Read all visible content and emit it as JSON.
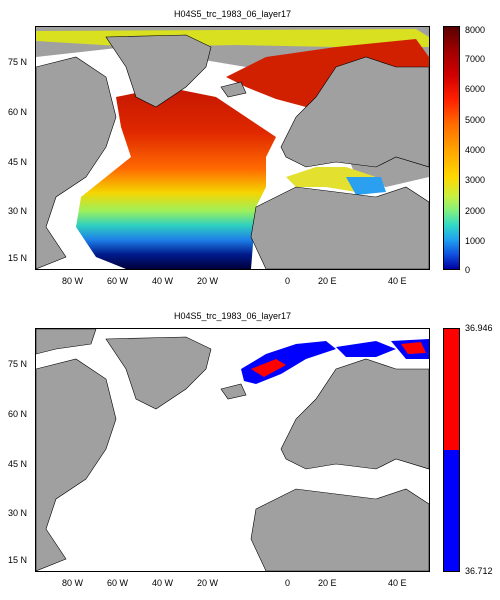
{
  "panels": [
    {
      "title": "H04S5_trc_1983_06_layer17",
      "colorbar": {
        "type": "continuous",
        "ticks": [
          "8000",
          "7000",
          "6000",
          "5000",
          "4000",
          "3000",
          "2000",
          "1000",
          "0"
        ],
        "range": [
          0,
          8000
        ]
      }
    },
    {
      "title": "H04S5_trc_1983_06_layer17",
      "colorbar": {
        "type": "binary",
        "max_label": "36.946",
        "min_label": "36.712",
        "colors": [
          "#ff0000",
          "#0000ff"
        ]
      }
    }
  ],
  "axes": {
    "lon_labels": [
      "80 W",
      "60 W",
      "40 W",
      "20 W",
      "0",
      "20 E",
      "40 E"
    ],
    "lat_labels": [
      "75 N",
      "60 N",
      "45 N",
      "30 N",
      "15 N"
    ]
  },
  "colors": {
    "land": "#a0a0a0",
    "ocean_missing": "#ffffff"
  }
}
